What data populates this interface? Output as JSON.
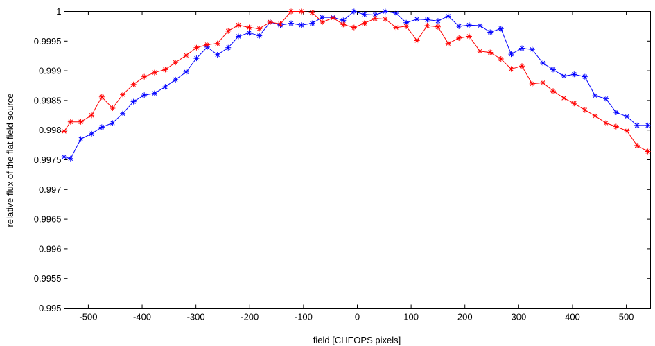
{
  "chart_data": {
    "type": "line",
    "title": "",
    "xlabel": "field [CHEOPS pixels]",
    "ylabel": "relative flux of the flat field source",
    "xlim": [
      -545,
      545
    ],
    "ylim": [
      0.995,
      1.0
    ],
    "xticks": [
      -500,
      -400,
      -300,
      -200,
      -100,
      0,
      100,
      200,
      300,
      400,
      500
    ],
    "yticks": [
      0.995,
      0.9955,
      0.996,
      0.9965,
      0.997,
      0.9975,
      0.998,
      0.9985,
      0.999,
      0.9995,
      1
    ],
    "ytick_labels": [
      "0.995",
      "0.9955",
      "0.996",
      "0.9965",
      "0.997",
      "0.9975",
      "0.998",
      "0.9985",
      "0.999",
      "0.9995",
      "1"
    ],
    "grid": false,
    "marker": "asterisk",
    "series": [
      {
        "color": "#0000ff",
        "x": [
          -545,
          -533,
          -514,
          -494,
          -475,
          -455,
          -436,
          -416,
          -396,
          -377,
          -357,
          -338,
          -318,
          -299,
          -279,
          -260,
          -240,
          -221,
          -201,
          -182,
          -162,
          -143,
          -123,
          -104,
          -84,
          -65,
          -45,
          -26,
          -6,
          13,
          33,
          52,
          72,
          91,
          111,
          130,
          150,
          169,
          189,
          208,
          228,
          247,
          267,
          286,
          306,
          325,
          345,
          364,
          384,
          403,
          423,
          442,
          462,
          481,
          501,
          520,
          540
        ],
        "values": [
          0.99755,
          0.99752,
          0.99785,
          0.99794,
          0.99805,
          0.99812,
          0.99828,
          0.99848,
          0.99859,
          0.99862,
          0.99873,
          0.99885,
          0.99898,
          0.99921,
          0.9994,
          0.99927,
          0.99939,
          0.99958,
          0.99964,
          0.99959,
          0.99982,
          0.99977,
          0.9998,
          0.99977,
          0.9998,
          0.9999,
          0.9999,
          0.99985,
          1.0,
          0.99995,
          0.99994,
          1.0,
          0.99997,
          0.99981,
          0.99987,
          0.99986,
          0.99984,
          0.99992,
          0.99975,
          0.99977,
          0.99976,
          0.99965,
          0.99971,
          0.99928,
          0.99938,
          0.99936,
          0.99913,
          0.99902,
          0.99891,
          0.99894,
          0.9989,
          0.99858,
          0.99853,
          0.9983,
          0.99823,
          0.99808,
          0.99808
        ]
      },
      {
        "color": "#ff0000",
        "x": [
          -545,
          -533,
          -514,
          -494,
          -475,
          -455,
          -436,
          -416,
          -396,
          -377,
          -357,
          -338,
          -318,
          -299,
          -279,
          -260,
          -240,
          -221,
          -201,
          -182,
          -162,
          -143,
          -123,
          -104,
          -84,
          -65,
          -45,
          -26,
          -6,
          13,
          33,
          52,
          72,
          91,
          111,
          130,
          150,
          169,
          189,
          208,
          228,
          247,
          267,
          286,
          306,
          325,
          345,
          364,
          384,
          403,
          423,
          442,
          462,
          481,
          501,
          520,
          540
        ],
        "values": [
          0.99798,
          0.99814,
          0.99814,
          0.99825,
          0.99856,
          0.99837,
          0.9986,
          0.99877,
          0.9989,
          0.99897,
          0.99902,
          0.99914,
          0.99926,
          0.99939,
          0.99944,
          0.99946,
          0.99967,
          0.99977,
          0.99973,
          0.99971,
          0.99982,
          0.99979,
          1.0,
          1.0,
          0.99998,
          0.99982,
          0.99989,
          0.99978,
          0.99973,
          0.9998,
          0.99988,
          0.99987,
          0.99973,
          0.99975,
          0.99951,
          0.99976,
          0.99974,
          0.99946,
          0.99955,
          0.99958,
          0.99933,
          0.99931,
          0.9992,
          0.99903,
          0.99908,
          0.99878,
          0.9988,
          0.99866,
          0.99854,
          0.99845,
          0.99834,
          0.99824,
          0.99812,
          0.99806,
          0.99799,
          0.99774,
          0.99764
        ]
      }
    ]
  }
}
